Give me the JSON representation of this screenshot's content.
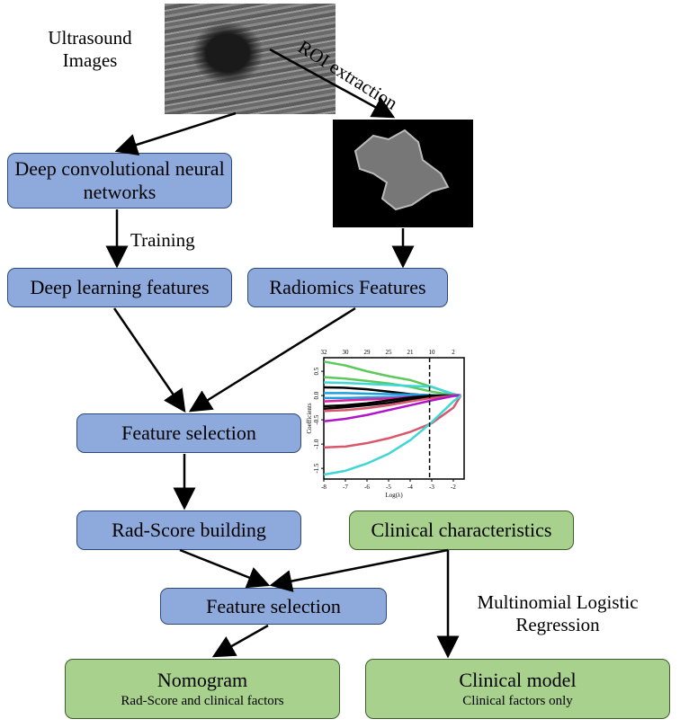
{
  "labels": {
    "ultrasound": "Ultrasound Images",
    "roi": "ROI extraction",
    "training": "Training",
    "mlr": "Multinomial Logistic Regression"
  },
  "boxes": {
    "dcnn": "Deep convolutional neural networks",
    "dl_features": "Deep learning features",
    "radiomics": "Radiomics Features",
    "feature_selection_1": "Feature selection",
    "radscore": "Rad-Score building",
    "clinical_char": "Clinical characteristics",
    "feature_selection_2": "Feature selection",
    "nomogram": {
      "title": "Nomogram",
      "sub": "Rad-Score and clinical factors"
    },
    "clinical_model": {
      "title": "Clinical model",
      "sub": "Clinical factors only"
    }
  },
  "colors": {
    "blue_box": "#8eaadc",
    "green_box": "#a9d18e"
  },
  "chart_data": {
    "type": "line",
    "xlabel": "Log(λ)",
    "ylabel": "Coefficients",
    "xlim": [
      -8,
      -1.5
    ],
    "ylim": [
      -1.72,
      0.78
    ],
    "x_ticks": [
      -8,
      -7,
      -6,
      -5,
      -4,
      -3,
      -2
    ],
    "y_ticks": [
      -1.5,
      -1.0,
      -0.5,
      0.0,
      0.5
    ],
    "y_tick_labels": [
      "-1.5",
      "-1.0",
      "-0.5",
      "0.0",
      "0.5"
    ],
    "top_ticks": [
      {
        "x": -8,
        "label": "32"
      },
      {
        "x": -7,
        "label": "30"
      },
      {
        "x": -6,
        "label": "29"
      },
      {
        "x": -5,
        "label": "25"
      },
      {
        "x": -4,
        "label": "21"
      },
      {
        "x": -3,
        "label": "10"
      },
      {
        "x": -2,
        "label": "2"
      }
    ],
    "vline": -3.1,
    "x": [
      -8,
      -7,
      -6,
      -5,
      -4,
      -3,
      -2,
      -1.65
    ],
    "series": [
      {
        "color": "#5cc95c",
        "values": [
          0.7,
          0.62,
          0.5,
          0.4,
          0.32,
          0.18,
          0.03,
          0
        ]
      },
      {
        "color": "#5cc95c",
        "values": [
          0.38,
          0.35,
          0.3,
          0.25,
          0.18,
          0.08,
          0.01,
          0
        ]
      },
      {
        "color": "#3fd6d6",
        "values": [
          0.27,
          0.26,
          0.24,
          0.22,
          0.2,
          0.18,
          0.03,
          0
        ]
      },
      {
        "color": "#000000",
        "values": [
          0.17,
          0.16,
          0.13,
          0.08,
          0.03,
          0,
          0,
          0
        ]
      },
      {
        "color": "#1f9fe0",
        "values": [
          0.05,
          0.05,
          0.04,
          0.03,
          0.02,
          0.01,
          0,
          0
        ]
      },
      {
        "color": "#1f9fe0",
        "values": [
          -0.05,
          -0.05,
          -0.04,
          -0.03,
          -0.02,
          -0.01,
          0,
          0
        ]
      },
      {
        "color": "#e020a0",
        "values": [
          -0.12,
          -0.1,
          -0.08,
          -0.06,
          -0.03,
          -0.01,
          0,
          0
        ]
      },
      {
        "color": "#000000",
        "values": [
          -0.22,
          -0.2,
          -0.16,
          -0.1,
          -0.04,
          0,
          0,
          0
        ]
      },
      {
        "color": "#000000",
        "values": [
          -0.27,
          -0.24,
          -0.2,
          -0.15,
          -0.08,
          -0.02,
          0,
          0
        ]
      },
      {
        "color": "#d9566b",
        "values": [
          -0.32,
          -0.3,
          -0.26,
          -0.2,
          -0.12,
          -0.05,
          0,
          0
        ]
      },
      {
        "color": "#b016c8",
        "values": [
          -0.53,
          -0.48,
          -0.4,
          -0.3,
          -0.2,
          -0.1,
          -0.01,
          0
        ]
      },
      {
        "color": "#d9566b",
        "values": [
          -1.07,
          -1.05,
          -0.98,
          -0.88,
          -0.75,
          -0.57,
          -0.25,
          0
        ]
      },
      {
        "color": "#3fd6d6",
        "values": [
          -1.63,
          -1.55,
          -1.4,
          -1.2,
          -0.92,
          -0.55,
          -0.12,
          0
        ]
      }
    ]
  }
}
